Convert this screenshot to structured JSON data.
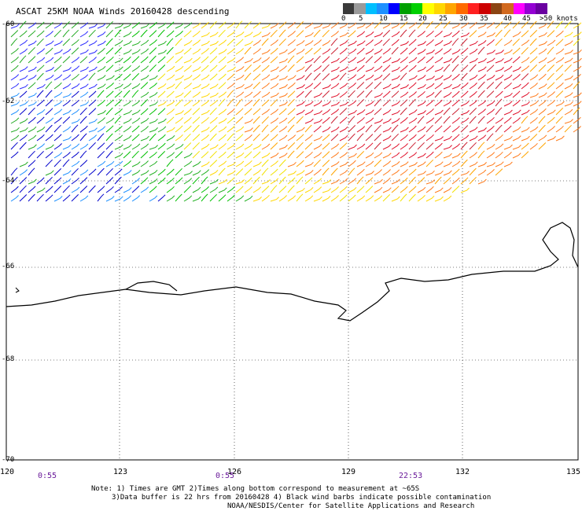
{
  "title": "ASCAT 25KM NOAA Winds 20160428 descending",
  "legend": {
    "labels": [
      "0",
      "5",
      "10",
      "15",
      "20",
      "25",
      "30",
      "35",
      "40",
      "45",
      ">50 knots"
    ],
    "colors": [
      "#3a3a3a",
      "#9a9a9a",
      "#00bfff",
      "#1e90ff",
      "#0000ff",
      "#00a000",
      "#00d000",
      "#ffff00",
      "#ffd700",
      "#ffa500",
      "#ff6a00",
      "#ff2020",
      "#cc0000",
      "#8b4513",
      "#d2691e",
      "#ff00ff",
      "#9400d3",
      "#6a00a0"
    ]
  },
  "lat_labels": [
    "-60",
    "-62",
    "-64",
    "-66",
    "-68",
    "-70"
  ],
  "lon_labels": [
    "120",
    "123",
    "126",
    "129",
    "132",
    "135"
  ],
  "time_labels": [
    "0:55",
    "0:55",
    "22:53"
  ],
  "notes": [
    "Note: 1) Times are GMT 2)Times along bottom correspond to measurement at ~65S",
    "3)Data buffer is 22 hrs from 20160428 4) Black wind barbs indicate possible contamination",
    "NOAA/NESDIS/Center for Satellite Applications and Research"
  ]
}
